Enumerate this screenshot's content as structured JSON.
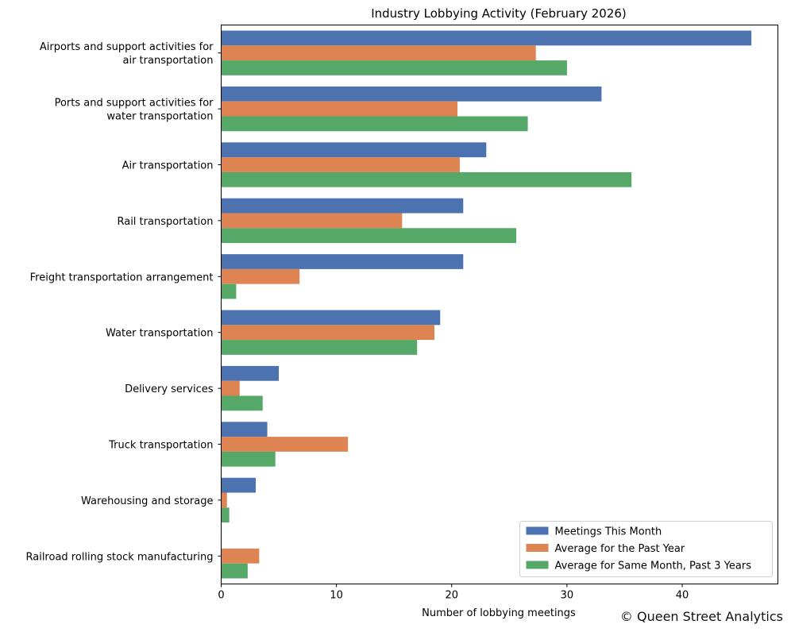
{
  "chart_data": {
    "type": "bar",
    "orientation": "horizontal",
    "title": "Industry Lobbying Activity (February 2026)",
    "xlabel": "Number of lobbying meetings",
    "ylabel": "",
    "xlim": [
      0,
      48.3
    ],
    "xticks": [
      0,
      10,
      20,
      30,
      40
    ],
    "grid": false,
    "legend_position": "lower-right",
    "categories": [
      [
        "Airports and support activities for",
        "air transportation"
      ],
      [
        "Ports and support activities for",
        "water transportation"
      ],
      [
        "Air transportation"
      ],
      [
        "Rail transportation"
      ],
      [
        "Freight transportation arrangement"
      ],
      [
        "Water transportation"
      ],
      [
        "Delivery services"
      ],
      [
        "Truck transportation"
      ],
      [
        "Warehousing and storage"
      ],
      [
        "Railroad rolling stock manufacturing"
      ]
    ],
    "series": [
      {
        "name": "Meetings This Month",
        "color": "#4c72b0",
        "values": [
          46,
          33,
          23,
          21,
          21,
          19,
          5,
          4,
          3,
          0
        ]
      },
      {
        "name": "Average for the Past Year",
        "color": "#dd8452",
        "values": [
          27.3,
          20.5,
          20.7,
          15.7,
          6.8,
          18.5,
          1.6,
          11.0,
          0.5,
          3.3
        ]
      },
      {
        "name": "Average for Same Month, Past 3 Years",
        "color": "#55a868",
        "values": [
          30.0,
          26.6,
          35.6,
          25.6,
          1.3,
          17.0,
          3.6,
          4.7,
          0.7,
          2.3
        ]
      }
    ]
  },
  "credit": "© Queen Street Analytics"
}
